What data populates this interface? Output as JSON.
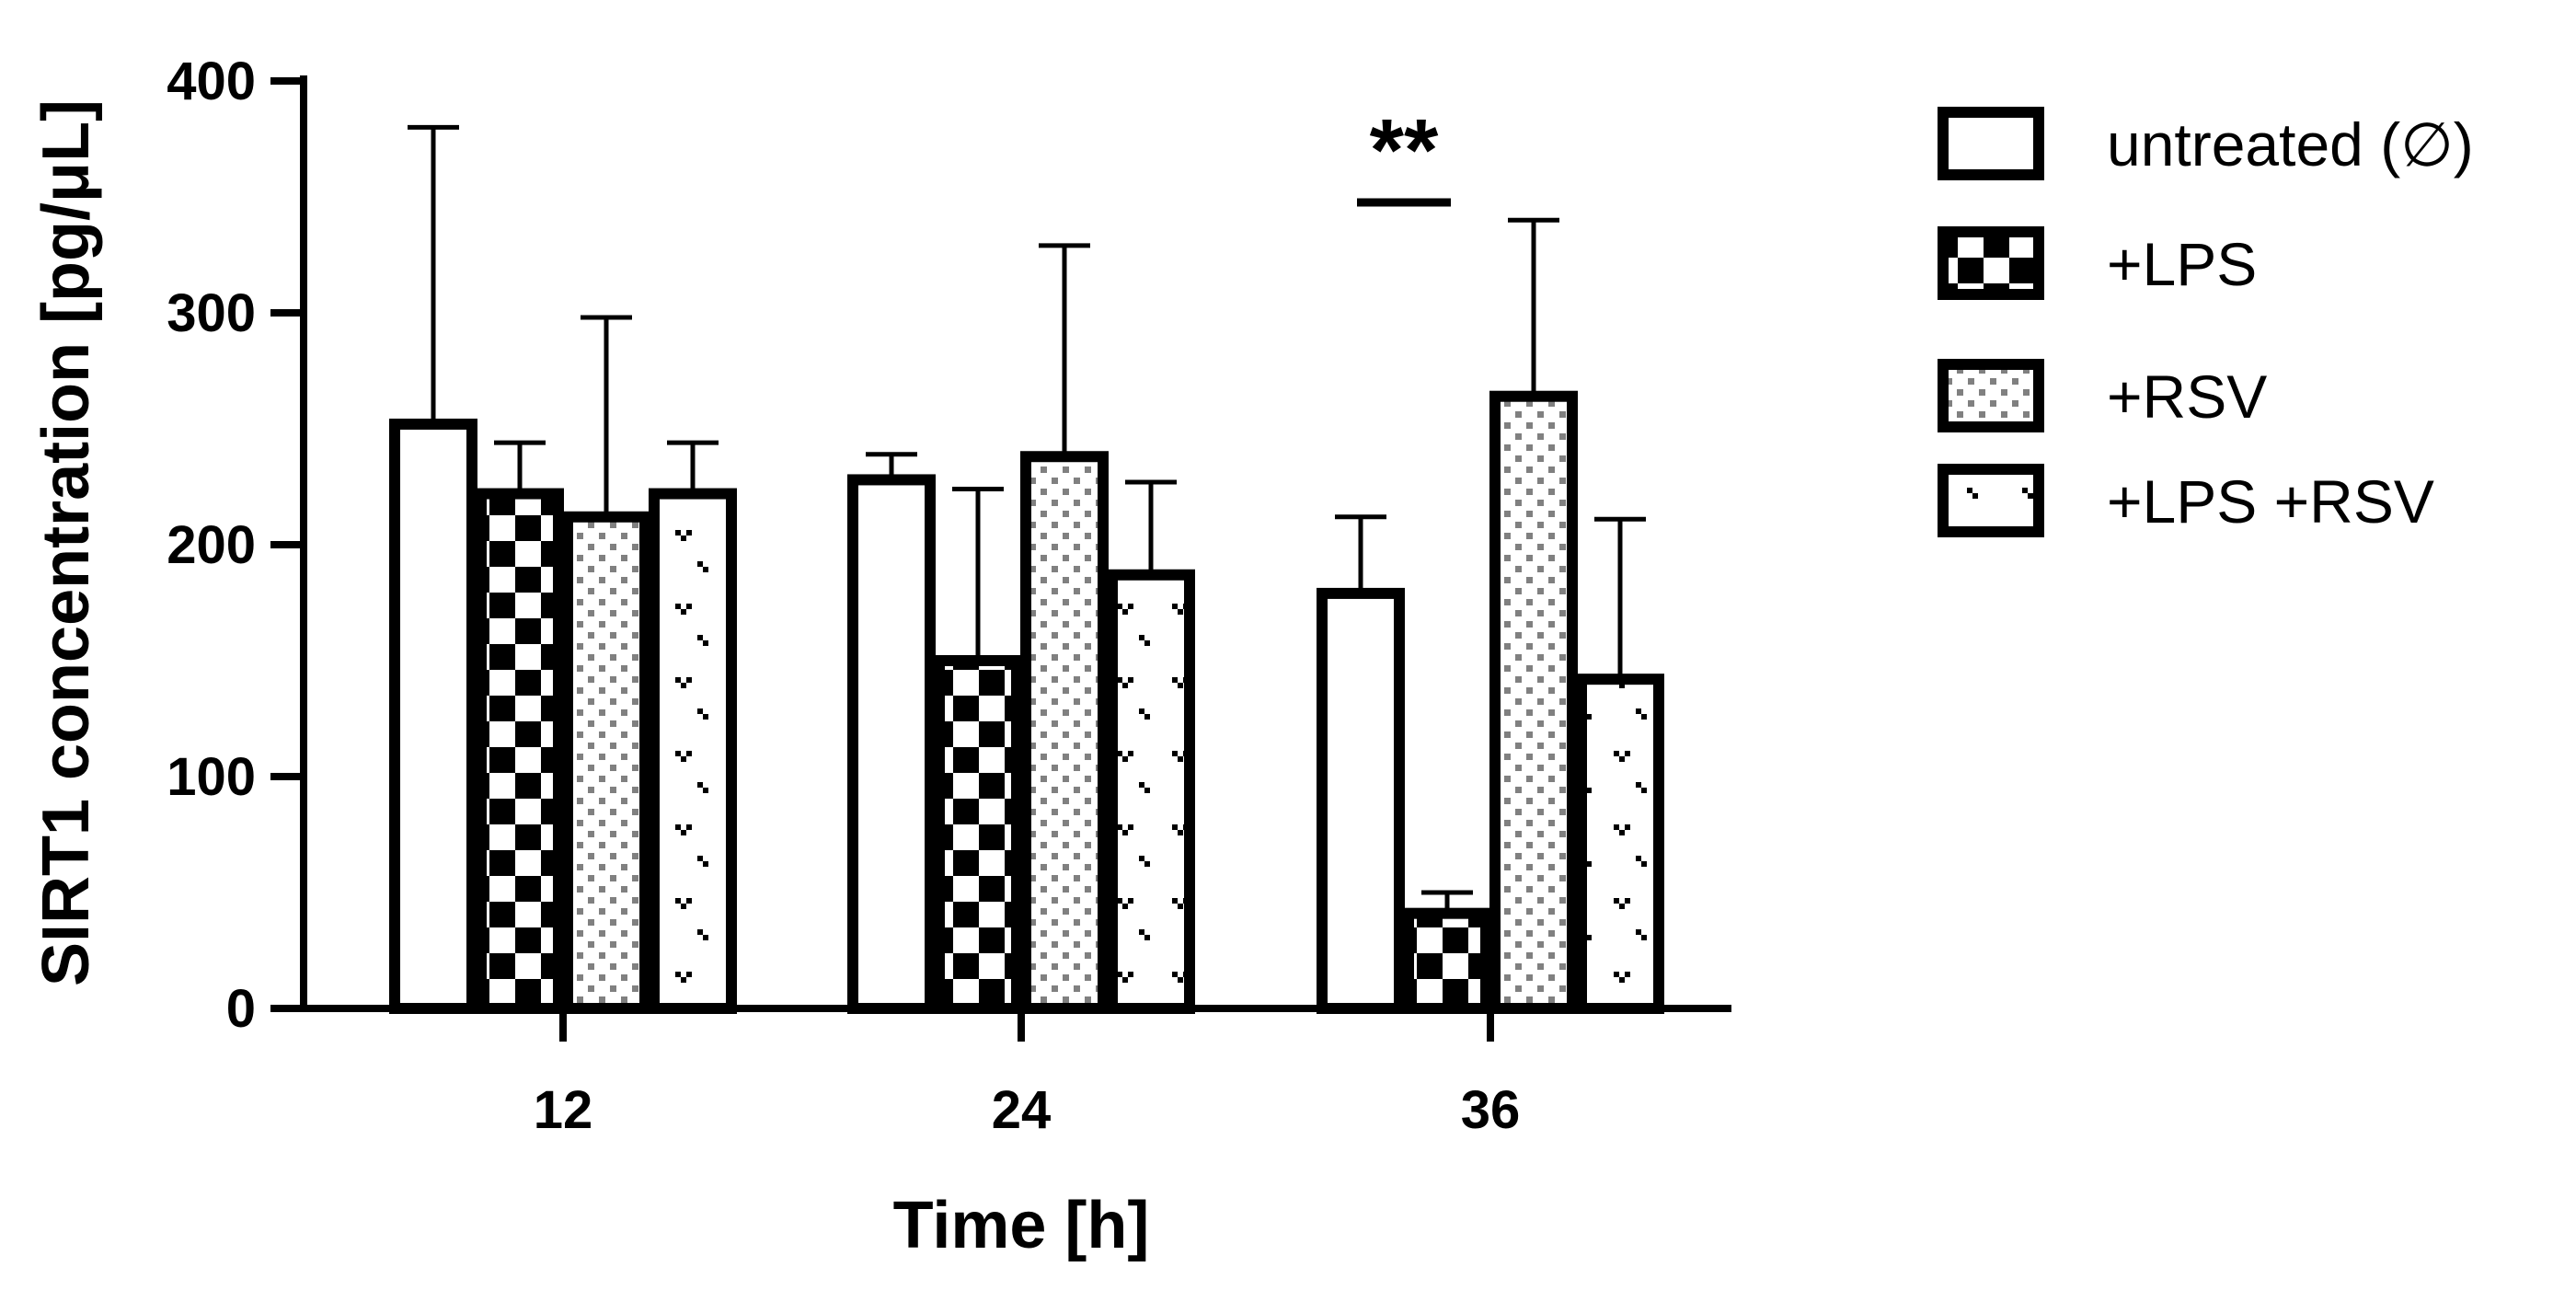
{
  "chart_data": {
    "type": "bar",
    "xlabel": "Time [h]",
    "ylabel": "SIRT1 concentration [pg/μL]",
    "categories": [
      "12",
      "24",
      "36"
    ],
    "ylim": [
      0,
      400
    ],
    "yticks": [
      "0",
      "100",
      "200",
      "300",
      "400"
    ],
    "grid": false,
    "legend_position": "top-right",
    "series": [
      {
        "name": "untreated (∅)",
        "pattern": "none",
        "values": [
          252,
          228,
          179
        ],
        "errors": [
          128,
          11,
          33
        ]
      },
      {
        "name": "+LPS",
        "pattern": "checkerboard",
        "values": [
          222,
          150,
          41
        ],
        "errors": [
          22,
          74,
          9
        ]
      },
      {
        "name": "+RSV",
        "pattern": "dots",
        "values": [
          212,
          238,
          264
        ],
        "errors": [
          86,
          91,
          76
        ]
      },
      {
        "name": "+LPS +RSV",
        "pattern": "hooks",
        "values": [
          222,
          187,
          142
        ],
        "errors": [
          22,
          40,
          69
        ]
      }
    ],
    "annotations": [
      {
        "text": "**",
        "category": "36",
        "between_series": [
          "untreated (∅)",
          "+LPS"
        ]
      }
    ]
  },
  "colors": {
    "stroke": "#000000",
    "fill": "#ffffff",
    "dot_pattern": "#808080"
  }
}
